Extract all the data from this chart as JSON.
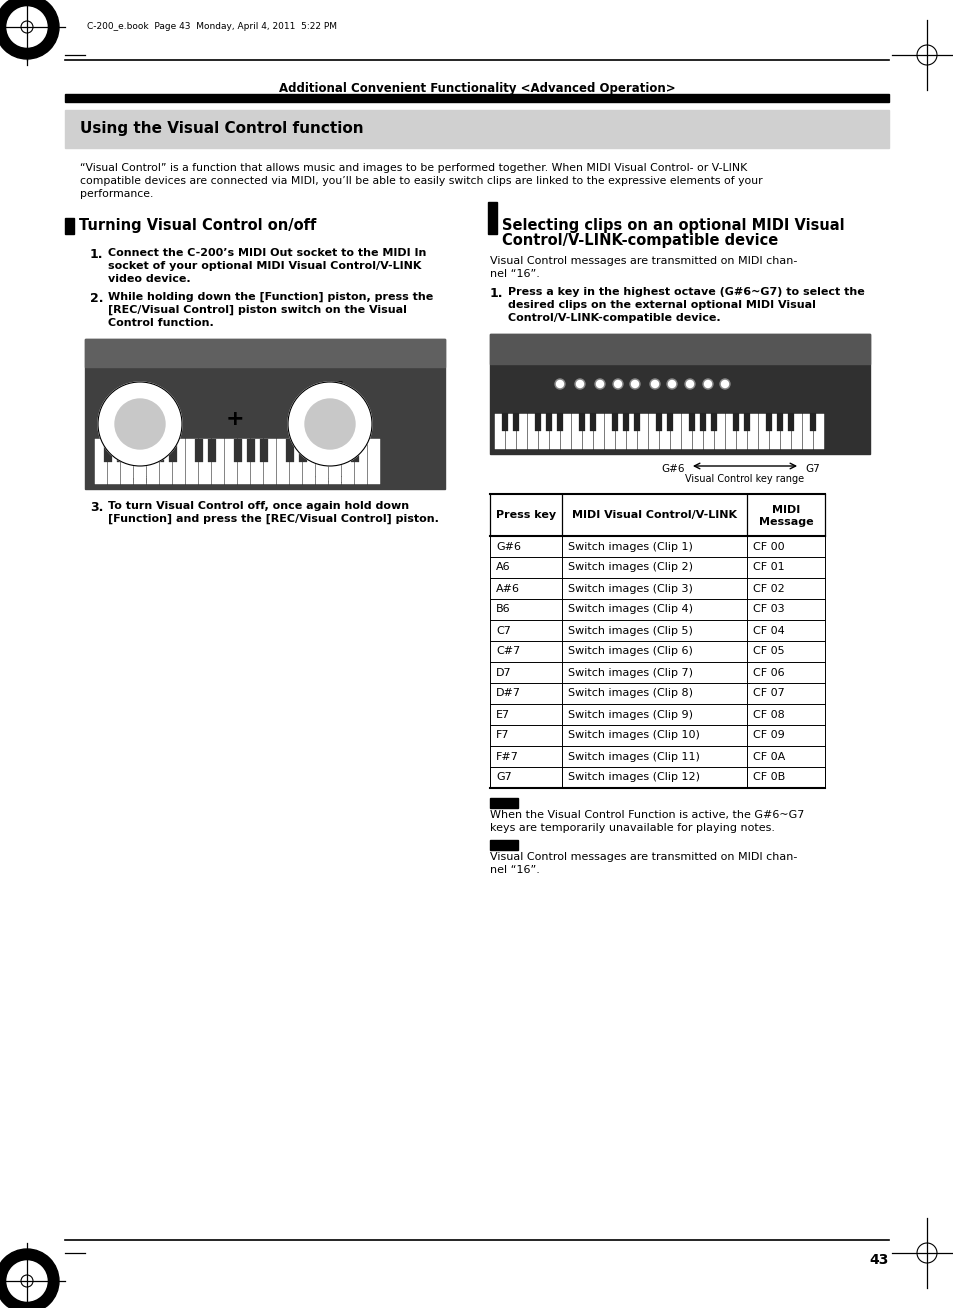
{
  "page_bg": "#ffffff",
  "header_text": "Additional Convenient Functionality <Advanced Operation>",
  "section_box_bg": "#d0d0d0",
  "section_box_title": "Using the Visual Control function",
  "section_intro_lines": [
    "“Visual Control” is a function that allows music and images to be performed together. When MIDI Visual Control- or V-LINK",
    "compatible devices are connected via MIDI, you’ll be able to easily switch clips are linked to the expressive elements of your",
    "performance."
  ],
  "left_section_title": "Turning Visual Control on/off",
  "left_step1_lines": [
    "Connect the C-200’s MIDI Out socket to the MIDI In",
    "socket of your optional MIDI Visual Control/V-LINK",
    "video device."
  ],
  "left_step2_lines": [
    "While holding down the [Function] piston, press the",
    "[REC/Visual Control] piston switch on the Visual",
    "Control function."
  ],
  "left_step3_lines": [
    "To turn Visual Control off, once again hold down",
    "[Function] and press the [REC/Visual Control] piston."
  ],
  "right_section_title_line1": "Selecting clips on an optional MIDI Visual",
  "right_section_title_line2": "Control/V-LINK-compatible device",
  "right_intro_lines": [
    "Visual Control messages are transmitted on MIDI chan-",
    "nel “16”."
  ],
  "right_step1_lines": [
    "Press a key in the highest octave (G#6~G7) to select the",
    "desired clips on the external optional MIDI Visual",
    "Control/V-LINK-compatible device."
  ],
  "key_range_label": "Visual Control key range",
  "g6_label": "G#6",
  "g7_label": "G7",
  "table_headers": [
    "Press key",
    "MIDI Visual Control/V-LINK",
    "MIDI\nMessage"
  ],
  "table_rows": [
    [
      "G#6",
      "Switch images (Clip 1)",
      "CF 00"
    ],
    [
      "A6",
      "Switch images (Clip 2)",
      "CF 01"
    ],
    [
      "A#6",
      "Switch images (Clip 3)",
      "CF 02"
    ],
    [
      "B6",
      "Switch images (Clip 4)",
      "CF 03"
    ],
    [
      "C7",
      "Switch images (Clip 5)",
      "CF 04"
    ],
    [
      "C#7",
      "Switch images (Clip 6)",
      "CF 05"
    ],
    [
      "D7",
      "Switch images (Clip 7)",
      "CF 06"
    ],
    [
      "D#7",
      "Switch images (Clip 8)",
      "CF 07"
    ],
    [
      "E7",
      "Switch images (Clip 9)",
      "CF 08"
    ],
    [
      "F7",
      "Switch images (Clip 10)",
      "CF 09"
    ],
    [
      "F#7",
      "Switch images (Clip 11)",
      "CF 0A"
    ],
    [
      "G7",
      "Switch images (Clip 12)",
      "CF 0B"
    ]
  ],
  "note_text1_lines": [
    "When the Visual Control Function is active, the G#6~G7",
    "keys are temporarily unavailable for playing notes."
  ],
  "note_text2_lines": [
    "Visual Control messages are transmitted on MIDI chan-",
    "nel “16”."
  ],
  "page_number": "43",
  "footer_text": "C-200_e.book  Page 43  Monday, April 4, 2011  5:22 PM"
}
